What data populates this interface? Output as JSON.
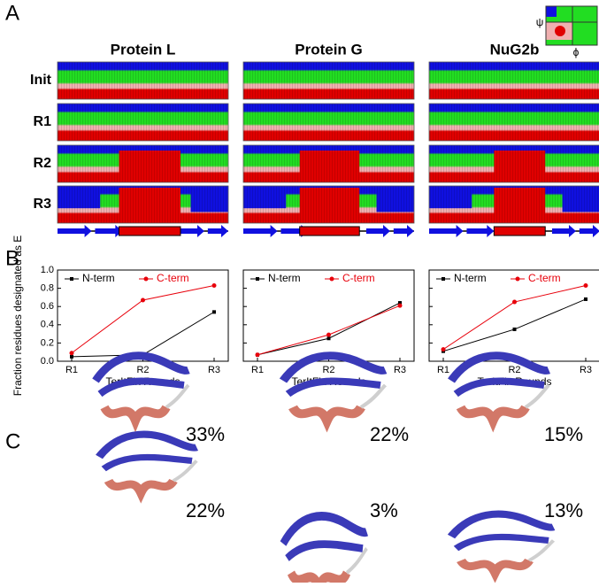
{
  "panel_labels": [
    "A",
    "B",
    "C"
  ],
  "panel_a": {
    "proteins": [
      "Protein L",
      "Protein G",
      "NuG2b"
    ],
    "rows": [
      "Init",
      "R1",
      "R2",
      "R3"
    ],
    "legend": {
      "psi": "ψ",
      "phi": "ϕ"
    }
  },
  "chart_data": [
    {
      "type": "line",
      "ylabel": "Fraction residues designated as E",
      "xlabel": "TerItFix Rounds",
      "categories": [
        "R1",
        "R2",
        "R3"
      ],
      "series": [
        {
          "name": "N-term",
          "color": "#000000",
          "values": [
            0.05,
            0.07,
            0.54
          ]
        },
        {
          "name": "C-term",
          "color": "#e8000b",
          "values": [
            0.09,
            0.67,
            0.83
          ]
        }
      ],
      "ylim": [
        0,
        1
      ],
      "yticks": [
        {
          "value": 0,
          "label": "0.0"
        },
        0.2,
        0.4,
        0.6,
        0.8,
        {
          "value": 1,
          "label": "1.0"
        }
      ],
      "legend": "upper left"
    },
    {
      "type": "line",
      "xlabel": "TerItFix Rounds",
      "categories": [
        "R1",
        "R2",
        "R3"
      ],
      "series": [
        {
          "name": "N-term",
          "color": "#000000",
          "values": [
            0.07,
            0.25,
            0.64
          ]
        },
        {
          "name": "C-term",
          "color": "#e8000b",
          "values": [
            0.07,
            0.29,
            0.61
          ]
        }
      ],
      "ylim": [
        0,
        1
      ],
      "yticks": [
        0,
        0.2,
        0.4,
        0.6,
        0.8,
        1
      ],
      "legend": "upper left"
    },
    {
      "type": "line",
      "xlabel": "TerItFix Rounds",
      "categories": [
        "R1",
        "R2",
        "R3"
      ],
      "series": [
        {
          "name": "N-term",
          "color": "#000000",
          "values": [
            0.11,
            0.35,
            0.68
          ]
        },
        {
          "name": "C-term",
          "color": "#e8000b",
          "values": [
            0.13,
            0.65,
            0.83
          ]
        }
      ],
      "ylim": [
        0,
        1
      ],
      "yticks": [
        0,
        0.2,
        0.4,
        0.6,
        0.8,
        1
      ],
      "legend": "upper left"
    }
  ],
  "panel_c": {
    "percentages": [
      [
        "33%",
        "22%"
      ],
      [
        "22%",
        "3%"
      ],
      [
        "15%",
        "13%"
      ]
    ]
  }
}
